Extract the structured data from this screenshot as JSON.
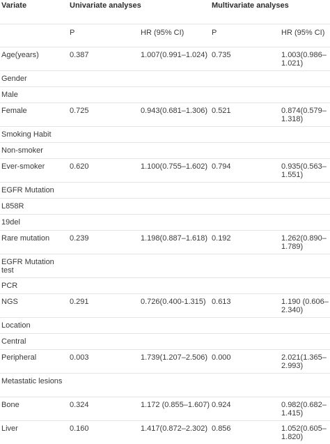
{
  "header": {
    "variate": "Variate",
    "univariate": "Univariate analyses",
    "multivariate": "Multivariate analyses",
    "p": "P",
    "hr": "HR (95% CI)"
  },
  "rows": [
    {
      "label": "Age(years)",
      "up": "0.387",
      "uhr": "1.007(0.991–1.024)",
      "mp": "0.735",
      "mhr": "1.003(0.986–1.021)"
    },
    {
      "label": "Gender",
      "up": "",
      "uhr": "",
      "mp": "",
      "mhr": ""
    },
    {
      "label": "Male",
      "up": "",
      "uhr": "",
      "mp": "",
      "mhr": ""
    },
    {
      "label": "Female",
      "up": "0.725",
      "uhr": "0.943(0.681–1.306)",
      "mp": "0.521",
      "mhr": "0.874(0.579–1.318)"
    },
    {
      "label": "Smoking Habit",
      "up": "",
      "uhr": "",
      "mp": "",
      "mhr": ""
    },
    {
      "label": "Non-smoker",
      "up": "",
      "uhr": "",
      "mp": "",
      "mhr": ""
    },
    {
      "label": "Ever-smoker",
      "up": "0.620",
      "uhr": "1.100(0.755–1.602)",
      "mp": "0.794",
      "mhr": "0.935(0.563–1.551)"
    },
    {
      "label": "EGFR Mutation",
      "up": "",
      "uhr": "",
      "mp": "",
      "mhr": ""
    },
    {
      "label": "L858R",
      "up": "",
      "uhr": "",
      "mp": "",
      "mhr": ""
    },
    {
      "label": "19del",
      "up": "",
      "uhr": "",
      "mp": "",
      "mhr": ""
    },
    {
      "label": "Rare mutation",
      "up": "0.239",
      "uhr": "1.198(0.887–1.618)",
      "mp": "0.192",
      "mhr": "1.262(0.890–1.789)"
    },
    {
      "label": "EGFR Mutation test",
      "up": "",
      "uhr": "",
      "mp": "",
      "mhr": ""
    },
    {
      "label": "PCR",
      "up": "",
      "uhr": "",
      "mp": "",
      "mhr": ""
    },
    {
      "label": "NGS",
      "up": "0.291",
      "uhr": "0.726(0.400-1.315)",
      "mp": "0.613",
      "mhr": "1.190 (0.606–2.340)"
    },
    {
      "label": "Location",
      "up": "",
      "uhr": "",
      "mp": "",
      "mhr": ""
    },
    {
      "label": "Central",
      "up": "",
      "uhr": "",
      "mp": "",
      "mhr": ""
    },
    {
      "label": "Peripheral",
      "up": "0.003",
      "uhr": "1.739(1.207–2.506)",
      "mp": "0.000",
      "mhr": "2.021(1.365–2.993)"
    },
    {
      "label": "Metastatic lesions",
      "up": "",
      "uhr": "",
      "mp": "",
      "mhr": ""
    },
    {
      "label": "Bone",
      "up": "0.324",
      "uhr": "1.172 (0.855–1.607)",
      "mp": "0.924",
      "mhr": "0.982(0.682–1.415)"
    },
    {
      "label": "Liver",
      "up": "0.160",
      "uhr": "1.417(0.872–2.302)",
      "mp": "0.856",
      "mhr": "1.052(0.605–1.820)"
    }
  ]
}
